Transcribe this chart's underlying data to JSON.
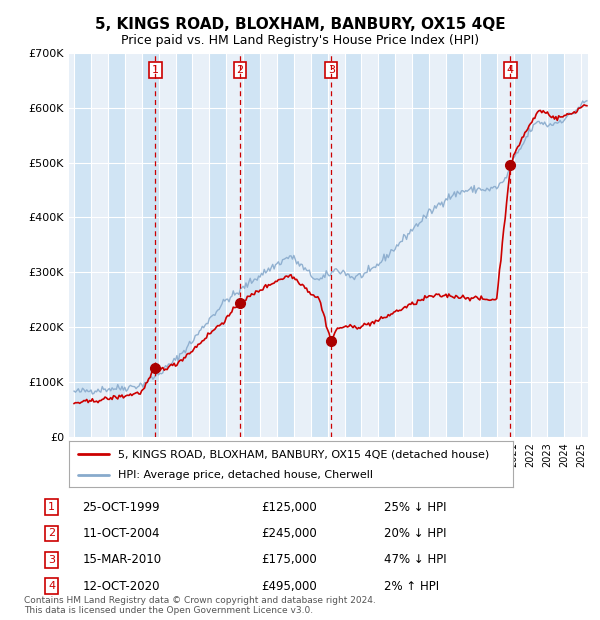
{
  "title": "5, KINGS ROAD, BLOXHAM, BANBURY, OX15 4QE",
  "subtitle": "Price paid vs. HM Land Registry's House Price Index (HPI)",
  "legend_property": "5, KINGS ROAD, BLOXHAM, BANBURY, OX15 4QE (detached house)",
  "legend_hpi": "HPI: Average price, detached house, Cherwell",
  "footer": "Contains HM Land Registry data © Crown copyright and database right 2024.\nThis data is licensed under the Open Government Licence v3.0.",
  "ylim": [
    0,
    700000
  ],
  "sale_events": [
    {
      "num": 1,
      "date": "25-OCT-1999",
      "price": 125000,
      "year": 1999.81,
      "pct": "25%",
      "dir": "↓"
    },
    {
      "num": 2,
      "date": "11-OCT-2004",
      "price": 245000,
      "year": 2004.81,
      "pct": "20%",
      "dir": "↓"
    },
    {
      "num": 3,
      "date": "15-MAR-2010",
      "price": 175000,
      "year": 2010.21,
      "pct": "47%",
      "dir": "↓"
    },
    {
      "num": 4,
      "date": "12-OCT-2020",
      "price": 495000,
      "year": 2020.81,
      "pct": "2%",
      "dir": "↑"
    }
  ],
  "property_color": "#cc0000",
  "hpi_color": "#88aacc",
  "plot_bg": "#e8f0f8",
  "alt_col_bg": "#d0e4f4",
  "vline_color": "#cc0000",
  "box_color": "#cc0000",
  "title_fontsize": 11,
  "subtitle_fontsize": 9
}
